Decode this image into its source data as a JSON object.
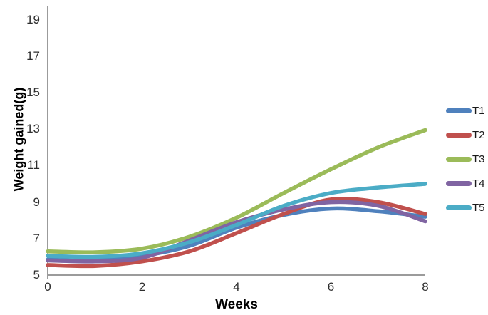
{
  "chart_data": {
    "type": "line",
    "title": "",
    "xlabel": "Weeks",
    "ylabel": "Weight gained(g)",
    "x": [
      0,
      1,
      2,
      3,
      4,
      5,
      6,
      7,
      8
    ],
    "x_ticks": [
      0,
      2,
      4,
      6,
      8
    ],
    "y_ticks": [
      5,
      7,
      9,
      11,
      13,
      15,
      17,
      19
    ],
    "xlim": [
      0,
      8
    ],
    "ylim": [
      5,
      19.8
    ],
    "grid": false,
    "legend_position": "right",
    "axis_color": "#9b9b9b",
    "tick_text_color": "#2e2e2e",
    "line_width": 5.5,
    "series": [
      {
        "name": "T1",
        "color": "#4F81BD",
        "values": [
          5.85,
          5.8,
          6.05,
          6.6,
          7.6,
          8.3,
          8.65,
          8.5,
          8.2
        ]
      },
      {
        "name": "T2",
        "color": "#C0504D",
        "values": [
          5.55,
          5.5,
          5.75,
          6.3,
          7.3,
          8.35,
          9.15,
          9.0,
          8.35
        ]
      },
      {
        "name": "T3",
        "color": "#9BBB59",
        "values": [
          6.3,
          6.25,
          6.45,
          7.1,
          8.15,
          9.5,
          10.8,
          12.0,
          12.95
        ]
      },
      {
        "name": "T4",
        "color": "#8064A2",
        "values": [
          5.8,
          5.75,
          5.95,
          6.9,
          7.9,
          8.6,
          9.0,
          8.8,
          7.95
        ]
      },
      {
        "name": "T5",
        "color": "#4BACC6",
        "values": [
          6.05,
          6.0,
          6.2,
          6.8,
          7.75,
          8.8,
          9.5,
          9.8,
          10.0
        ]
      }
    ]
  }
}
